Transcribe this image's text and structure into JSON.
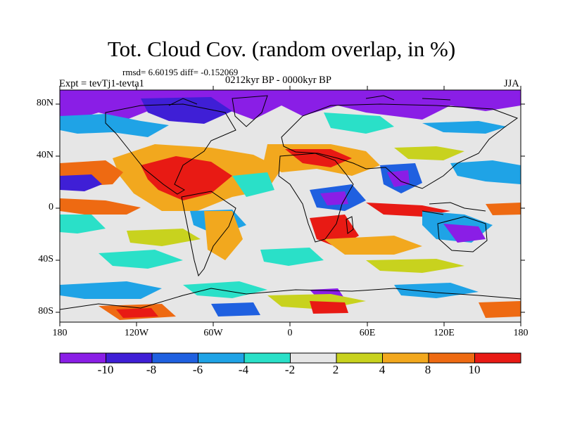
{
  "title": "Tot. Cloud Cov. (random overlap, in %)",
  "stats": "rmsd= 6.60195 diff= -0.152069",
  "experiment": "Expt = tevTj1-tevta1",
  "period": "0212kyr BP - 0000kyr BP",
  "season": "JJA",
  "lat_labels": [
    "80N",
    "40N",
    "0",
    "40S",
    "80S"
  ],
  "lon_labels": [
    "180",
    "120W",
    "60W",
    "0",
    "60E",
    "120E",
    "180"
  ],
  "colorbar": {
    "labels": [
      "-10",
      "-8",
      "-6",
      "-4",
      "-2",
      "2",
      "4",
      "8",
      "10"
    ],
    "colors": [
      "#8a1ee6",
      "#3f1fd6",
      "#1f60e0",
      "#1fa3e6",
      "#2ae0c8",
      "#e6e6e6",
      "#c8d21e",
      "#f2a81e",
      "#ee6a12",
      "#e81a14"
    ]
  }
}
